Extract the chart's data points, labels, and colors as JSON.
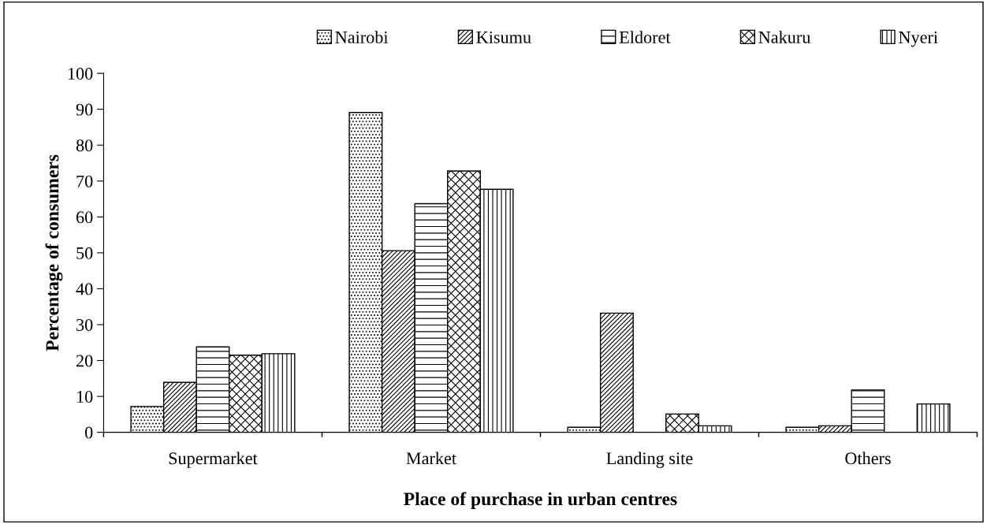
{
  "chart_data": {
    "type": "bar",
    "xlabel": "Place of purchase in urban centres",
    "ylabel": "Percentage of consumers",
    "categories": [
      "Supermarket",
      "Market",
      "Landing site",
      "Others"
    ],
    "series": [
      {
        "name": "Nairobi",
        "color": "#000000",
        "values": [
          7.2,
          89.1,
          1.4,
          1.4
        ]
      },
      {
        "name": "Kisumu",
        "color": "#000000",
        "values": [
          13.9,
          50.6,
          33.2,
          1.8
        ]
      },
      {
        "name": "Eldoret",
        "color": "#000000",
        "values": [
          23.8,
          63.7,
          0,
          11.8
        ]
      },
      {
        "name": "Nakuru",
        "color": "#000000",
        "values": [
          21.5,
          72.8,
          5.1,
          0
        ]
      },
      {
        "name": "Nyeri",
        "color": "#000000",
        "values": [
          21.9,
          67.7,
          1.8,
          7.9
        ]
      }
    ],
    "ylim": [
      0,
      100
    ],
    "yticks": [
      0,
      10,
      20,
      30,
      40,
      50,
      60,
      70,
      80,
      90,
      100
    ],
    "grid": false,
    "legend": "top"
  }
}
